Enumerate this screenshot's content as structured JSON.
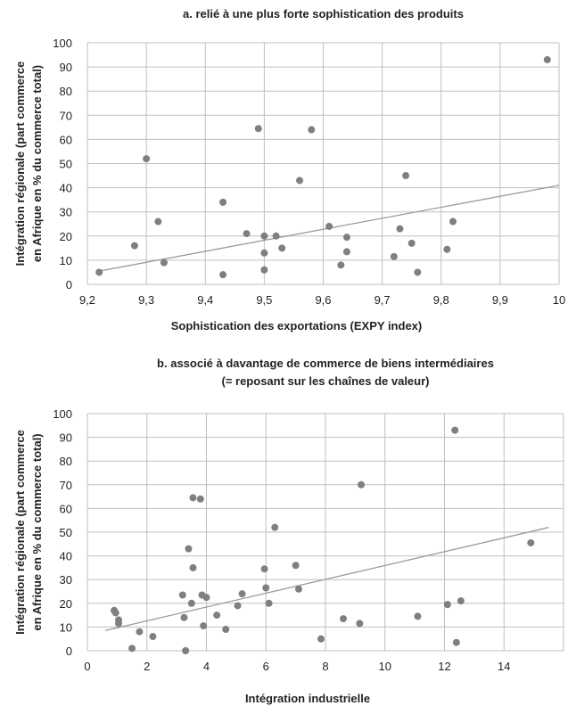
{
  "chart_data": [
    {
      "type": "scatter",
      "title": "a. relié à une plus forte sophistication des produits",
      "title_lines": [
        "a. relié à une plus forte sophistication des produits"
      ],
      "xlabel": "Sophistication des exportations (EXPY index)",
      "ylabel_lines": [
        "Intégration régionale (part commerce",
        "en Afrique en % du commerce total)"
      ],
      "xlim": [
        9.2,
        10
      ],
      "ylim": [
        0,
        100
      ],
      "x_ticks": [
        9.2,
        9.3,
        9.4,
        9.5,
        9.6,
        9.7,
        9.8,
        9.9,
        10
      ],
      "x_tick_labels": [
        "9,2",
        "9,3",
        "9,4",
        "9,5",
        "9,6",
        "9,7",
        "9,8",
        "9,9",
        "10"
      ],
      "y_ticks": [
        0,
        10,
        20,
        30,
        40,
        50,
        60,
        70,
        80,
        90,
        100
      ],
      "y_tick_labels": [
        "0",
        "10",
        "20",
        "30",
        "40",
        "50",
        "60",
        "70",
        "80",
        "90",
        "100"
      ],
      "grid": true,
      "marker_color": "#7f7f7f",
      "trend_color": "#9b9b9b",
      "trendline": {
        "x": [
          9.22,
          10
        ],
        "y": [
          5.5,
          41
        ]
      },
      "points": [
        {
          "x": 9.22,
          "y": 5
        },
        {
          "x": 9.28,
          "y": 16
        },
        {
          "x": 9.3,
          "y": 52
        },
        {
          "x": 9.32,
          "y": 26
        },
        {
          "x": 9.33,
          "y": 9
        },
        {
          "x": 9.43,
          "y": 34
        },
        {
          "x": 9.43,
          "y": 4
        },
        {
          "x": 9.47,
          "y": 21
        },
        {
          "x": 9.49,
          "y": 64.5
        },
        {
          "x": 9.5,
          "y": 20
        },
        {
          "x": 9.5,
          "y": 13
        },
        {
          "x": 9.5,
          "y": 6
        },
        {
          "x": 9.52,
          "y": 20
        },
        {
          "x": 9.53,
          "y": 15
        },
        {
          "x": 9.56,
          "y": 43
        },
        {
          "x": 9.58,
          "y": 64
        },
        {
          "x": 9.61,
          "y": 24
        },
        {
          "x": 9.63,
          "y": 8
        },
        {
          "x": 9.64,
          "y": 13.5
        },
        {
          "x": 9.64,
          "y": 19.5
        },
        {
          "x": 9.72,
          "y": 11.5
        },
        {
          "x": 9.73,
          "y": 23
        },
        {
          "x": 9.74,
          "y": 45
        },
        {
          "x": 9.75,
          "y": 17
        },
        {
          "x": 9.76,
          "y": 5
        },
        {
          "x": 9.81,
          "y": 14.5
        },
        {
          "x": 9.82,
          "y": 26
        },
        {
          "x": 9.98,
          "y": 93
        }
      ]
    },
    {
      "type": "scatter",
      "title": "b.  associé à davantage de commerce de biens intermédiaires (= reposant sur les chaînes de valeur)",
      "title_lines": [
        "b.  associé à davantage de commerce de biens intermédiaires",
        "(= reposant sur les chaînes de valeur)"
      ],
      "xlabel": "Intégration industrielle",
      "ylabel_lines": [
        "Intégration régionale (part commerce",
        "en Afrique en % du commerce total)"
      ],
      "xlim": [
        0,
        16
      ],
      "ylim": [
        0,
        100
      ],
      "x_ticks": [
        0,
        2,
        4,
        6,
        8,
        10,
        12,
        14
      ],
      "x_tick_labels": [
        "0",
        "2",
        "4",
        "6",
        "8",
        "10",
        "12",
        "14"
      ],
      "y_ticks": [
        0,
        10,
        20,
        30,
        40,
        50,
        60,
        70,
        80,
        90,
        100
      ],
      "y_tick_labels": [
        "0",
        "10",
        "20",
        "30",
        "40",
        "50",
        "60",
        "70",
        "80",
        "90",
        "100"
      ],
      "grid": true,
      "marker_color": "#7f7f7f",
      "trend_color": "#9b9b9b",
      "trendline": {
        "x": [
          0.6,
          15.5
        ],
        "y": [
          8.5,
          52
        ]
      },
      "points": [
        {
          "x": 0.9,
          "y": 17
        },
        {
          "x": 0.95,
          "y": 16
        },
        {
          "x": 1.05,
          "y": 13
        },
        {
          "x": 1.05,
          "y": 11.5
        },
        {
          "x": 1.5,
          "y": 1
        },
        {
          "x": 1.75,
          "y": 8
        },
        {
          "x": 2.2,
          "y": 6
        },
        {
          "x": 3.2,
          "y": 23.5
        },
        {
          "x": 3.25,
          "y": 14
        },
        {
          "x": 3.3,
          "y": 0
        },
        {
          "x": 3.4,
          "y": 43
        },
        {
          "x": 3.5,
          "y": 20
        },
        {
          "x": 3.55,
          "y": 64.5
        },
        {
          "x": 3.55,
          "y": 35
        },
        {
          "x": 3.8,
          "y": 64
        },
        {
          "x": 3.85,
          "y": 23.5
        },
        {
          "x": 3.9,
          "y": 10.5
        },
        {
          "x": 4.0,
          "y": 22.5
        },
        {
          "x": 4.35,
          "y": 15
        },
        {
          "x": 4.65,
          "y": 9
        },
        {
          "x": 5.05,
          "y": 19
        },
        {
          "x": 5.2,
          "y": 24
        },
        {
          "x": 5.95,
          "y": 34.5
        },
        {
          "x": 6.0,
          "y": 26.5
        },
        {
          "x": 6.1,
          "y": 20
        },
        {
          "x": 6.3,
          "y": 52
        },
        {
          "x": 7.0,
          "y": 36
        },
        {
          "x": 7.1,
          "y": 26
        },
        {
          "x": 7.85,
          "y": 5
        },
        {
          "x": 8.6,
          "y": 13.5
        },
        {
          "x": 9.15,
          "y": 11.5
        },
        {
          "x": 9.2,
          "y": 70
        },
        {
          "x": 11.1,
          "y": 14.5
        },
        {
          "x": 12.1,
          "y": 19.5
        },
        {
          "x": 12.35,
          "y": 93
        },
        {
          "x": 12.4,
          "y": 3.5
        },
        {
          "x": 12.55,
          "y": 21
        },
        {
          "x": 14.9,
          "y": 45.5
        }
      ]
    }
  ]
}
